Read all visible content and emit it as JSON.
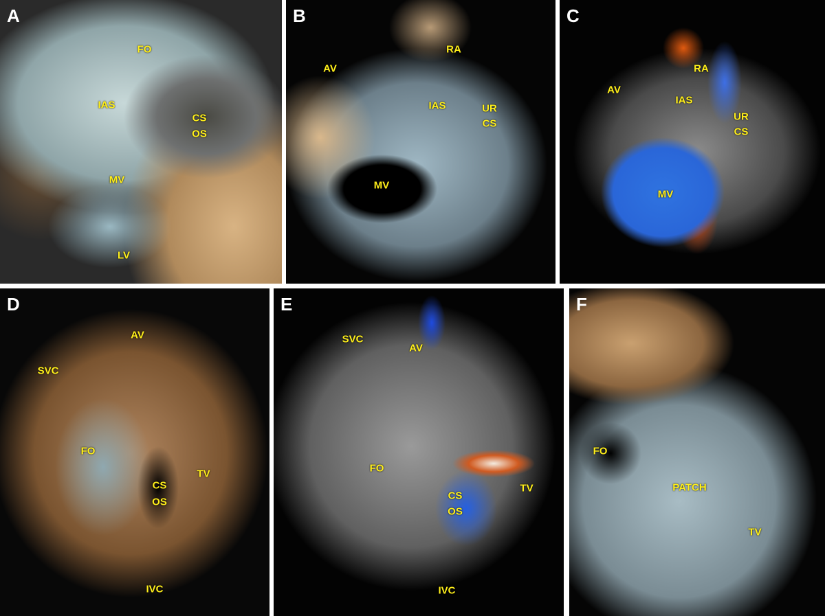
{
  "panels": [
    {
      "letter": "A",
      "labels": [
        "FO",
        "IAS",
        "CS",
        "OS",
        "MV",
        "LV"
      ]
    },
    {
      "letter": "B",
      "labels": [
        "RA",
        "AV",
        "IAS",
        "UR",
        "CS",
        "MV"
      ]
    },
    {
      "letter": "C",
      "labels": [
        "RA",
        "AV",
        "IAS",
        "UR",
        "CS",
        "MV"
      ]
    },
    {
      "letter": "D",
      "labels": [
        "AV",
        "SVC",
        "FO",
        "CS",
        "OS",
        "TV",
        "IVC"
      ]
    },
    {
      "letter": "E",
      "labels": [
        "SVC",
        "AV",
        "FO",
        "CS",
        "OS",
        "TV",
        "IVC"
      ]
    },
    {
      "letter": "F",
      "labels": [
        "FO",
        "PATCH",
        "TV"
      ]
    }
  ]
}
